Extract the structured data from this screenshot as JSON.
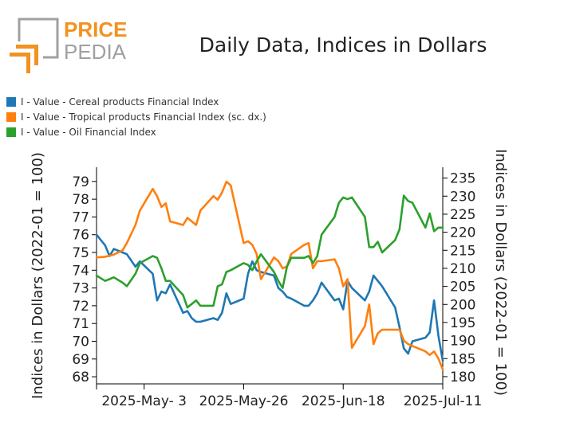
{
  "header": {
    "logo_text_top": "PRICE",
    "logo_text_bottom": "PEDIA"
  },
  "colors": {
    "cereal": "#1f77b4",
    "tropical": "#ff7f0e",
    "oil": "#2ca02c",
    "logo_orange": "#f39220",
    "logo_gray": "#a0a0a0"
  },
  "chart_data": {
    "type": "line",
    "title": "Daily Data, Indices in Dollars",
    "ylabel_left": "Indices in Dollars (2022-01 = 100)",
    "ylabel_right": "Indices in Dollars (2022-01 = 100)",
    "x_tick_labels": [
      "2025-May- 3",
      "2025-May-26",
      "2025-Jun-18",
      "2025-Jul-11"
    ],
    "x_tick_dates": [
      "2025-05-03",
      "2025-05-26",
      "2025-06-18",
      "2025-07-11"
    ],
    "xlim": [
      "2025-04-22",
      "2025-07-11"
    ],
    "ylim_left": [
      67.6,
      79.8
    ],
    "y_ticks_left": [
      68,
      69,
      70,
      71,
      72,
      73,
      74,
      75,
      76,
      77,
      78,
      79
    ],
    "ylim_right": [
      178,
      238
    ],
    "y_ticks_right": [
      180,
      185,
      190,
      195,
      200,
      205,
      210,
      215,
      220,
      225,
      230,
      235
    ],
    "legend_position": "top-left, above plot",
    "series": [
      {
        "name": "I - Value - Cereal products Financial Index",
        "axis": "left",
        "x": [
          "2025-04-22",
          "2025-04-24",
          "2025-04-25",
          "2025-04-26",
          "2025-04-28",
          "2025-04-29",
          "2025-05-01",
          "2025-05-02",
          "2025-05-05",
          "2025-05-06",
          "2025-05-07",
          "2025-05-08",
          "2025-05-09",
          "2025-05-12",
          "2025-05-13",
          "2025-05-14",
          "2025-05-15",
          "2025-05-16",
          "2025-05-19",
          "2025-05-20",
          "2025-05-21",
          "2025-05-22",
          "2025-05-23",
          "2025-05-26",
          "2025-05-27",
          "2025-05-28",
          "2025-05-29",
          "2025-05-30",
          "2025-06-02",
          "2025-06-03",
          "2025-06-04",
          "2025-06-05",
          "2025-06-06",
          "2025-06-09",
          "2025-06-10",
          "2025-06-11",
          "2025-06-12",
          "2025-06-13",
          "2025-06-16",
          "2025-06-17",
          "2025-06-18",
          "2025-06-19",
          "2025-06-20",
          "2025-06-23",
          "2025-06-24",
          "2025-06-25",
          "2025-06-26",
          "2025-06-27",
          "2025-06-30",
          "2025-07-01",
          "2025-07-02",
          "2025-07-03",
          "2025-07-04",
          "2025-07-07",
          "2025-07-08",
          "2025-07-09",
          "2025-07-10",
          "2025-07-11"
        ],
        "values": [
          76.0,
          75.4,
          74.8,
          75.2,
          75.0,
          74.9,
          74.2,
          74.5,
          73.8,
          72.3,
          72.8,
          72.7,
          73.2,
          71.6,
          71.7,
          71.3,
          71.1,
          71.1,
          71.3,
          71.2,
          71.6,
          72.7,
          72.1,
          72.4,
          73.8,
          74.5,
          74.0,
          73.9,
          73.7,
          73.0,
          72.8,
          72.5,
          72.4,
          72.0,
          72.0,
          72.3,
          72.7,
          73.3,
          72.3,
          72.4,
          71.8,
          73.4,
          73.0,
          72.3,
          72.8,
          73.7,
          73.4,
          73.1,
          71.9,
          70.8,
          69.6,
          69.3,
          70.0,
          70.2,
          70.5,
          72.3,
          70.3,
          68.9
        ]
      },
      {
        "name": "I - Value - Tropical products Financial Index (sc. dx.)",
        "axis": "right",
        "x": [
          "2025-04-22",
          "2025-04-24",
          "2025-04-25",
          "2025-04-26",
          "2025-04-28",
          "2025-04-29",
          "2025-05-01",
          "2025-05-02",
          "2025-05-05",
          "2025-05-06",
          "2025-05-07",
          "2025-05-08",
          "2025-05-09",
          "2025-05-12",
          "2025-05-13",
          "2025-05-14",
          "2025-05-15",
          "2025-05-16",
          "2025-05-19",
          "2025-05-20",
          "2025-05-21",
          "2025-05-22",
          "2025-05-23",
          "2025-05-26",
          "2025-05-27",
          "2025-05-28",
          "2025-05-29",
          "2025-05-30",
          "2025-06-02",
          "2025-06-03",
          "2025-06-04",
          "2025-06-05",
          "2025-06-06",
          "2025-06-09",
          "2025-06-10",
          "2025-06-11",
          "2025-06-12",
          "2025-06-13",
          "2025-06-16",
          "2025-06-17",
          "2025-06-18",
          "2025-06-19",
          "2025-06-20",
          "2025-06-23",
          "2025-06-24",
          "2025-06-25",
          "2025-06-26",
          "2025-06-27",
          "2025-06-30",
          "2025-07-01",
          "2025-07-02",
          "2025-07-03",
          "2025-07-04",
          "2025-07-07",
          "2025-07-08",
          "2025-07-09",
          "2025-07-10",
          "2025-07-11"
        ],
        "values": [
          213.0,
          213.2,
          213.5,
          213.8,
          215.0,
          217.0,
          222.0,
          226.0,
          232.0,
          230.0,
          227.0,
          228.0,
          223.0,
          222.0,
          224.0,
          223.0,
          222.0,
          226.0,
          230.0,
          229.0,
          231.0,
          234.0,
          233.0,
          217.0,
          217.5,
          216.5,
          214.0,
          207.0,
          213.0,
          212.0,
          210.0,
          210.5,
          214.0,
          216.5,
          217.0,
          210.0,
          212.0,
          212.0,
          212.5,
          210.0,
          205.0,
          207.0,
          188.0,
          194.0,
          200.0,
          189.0,
          192.0,
          193.0,
          193.0,
          193.0,
          190.0,
          189.0,
          188.5,
          187.0,
          186.0,
          187.0,
          185.0,
          182.0
        ]
      },
      {
        "name": "I - Value - Oil Financial Index",
        "axis": "left",
        "x": [
          "2025-04-22",
          "2025-04-24",
          "2025-04-25",
          "2025-04-26",
          "2025-04-28",
          "2025-04-29",
          "2025-05-01",
          "2025-05-02",
          "2025-05-05",
          "2025-05-06",
          "2025-05-07",
          "2025-05-08",
          "2025-05-09",
          "2025-05-12",
          "2025-05-13",
          "2025-05-14",
          "2025-05-15",
          "2025-05-16",
          "2025-05-19",
          "2025-05-20",
          "2025-05-21",
          "2025-05-22",
          "2025-05-23",
          "2025-05-26",
          "2025-05-27",
          "2025-05-28",
          "2025-05-29",
          "2025-05-30",
          "2025-06-02",
          "2025-06-03",
          "2025-06-04",
          "2025-06-05",
          "2025-06-06",
          "2025-06-09",
          "2025-06-10",
          "2025-06-11",
          "2025-06-12",
          "2025-06-13",
          "2025-06-16",
          "2025-06-17",
          "2025-06-18",
          "2025-06-19",
          "2025-06-20",
          "2025-06-23",
          "2025-06-24",
          "2025-06-25",
          "2025-06-26",
          "2025-06-27",
          "2025-06-30",
          "2025-07-01",
          "2025-07-02",
          "2025-07-03",
          "2025-07-04",
          "2025-07-07",
          "2025-07-08",
          "2025-07-09",
          "2025-07-10",
          "2025-07-11"
        ],
        "values": [
          73.7,
          73.4,
          73.5,
          73.6,
          73.3,
          73.1,
          73.8,
          74.4,
          74.8,
          74.7,
          74.1,
          73.4,
          73.4,
          72.6,
          71.9,
          72.1,
          72.3,
          72.0,
          72.0,
          73.1,
          73.2,
          73.9,
          74.0,
          74.4,
          74.3,
          74.0,
          74.5,
          74.9,
          73.9,
          73.4,
          73.0,
          74.2,
          74.7,
          74.7,
          74.8,
          74.4,
          74.8,
          76.0,
          77.0,
          77.8,
          78.1,
          78.0,
          78.1,
          77.0,
          75.3,
          75.3,
          75.6,
          75.0,
          75.7,
          76.3,
          78.2,
          77.9,
          77.8,
          76.4,
          77.2,
          76.2,
          76.4,
          76.4
        ]
      }
    ]
  }
}
